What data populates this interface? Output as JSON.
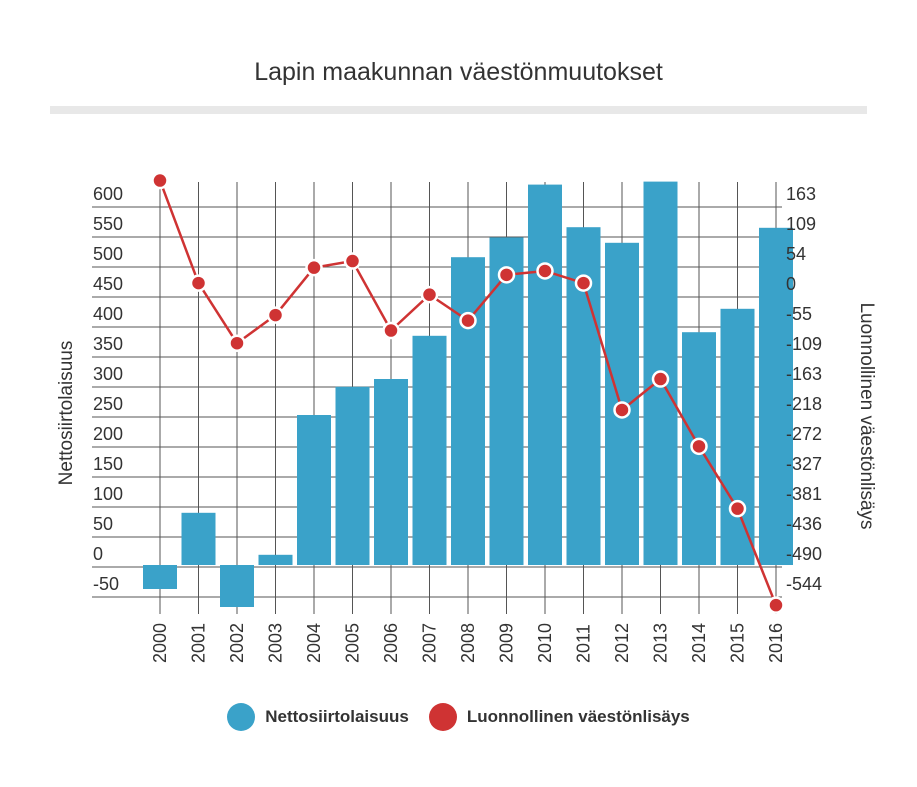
{
  "colors": {
    "bar": "#3aa2c9",
    "line": "#cf3333",
    "grid": "#555555",
    "text": "#333333"
  },
  "chart_data": {
    "type": "bar",
    "title": "Lapin maakunnan väestönmuutokset",
    "categories": [
      "2000",
      "2001",
      "2002",
      "2003",
      "2004",
      "2005",
      "2006",
      "2007",
      "2008",
      "2009",
      "2010",
      "2011",
      "2012",
      "2013",
      "2014",
      "2015",
      "2016"
    ],
    "series": [
      {
        "name": "Nettosiirtolaisuus",
        "type": "bar",
        "axis": "left",
        "values": [
          -40,
          87,
          -70,
          17,
          250,
          297,
          310,
          382,
          513,
          546,
          634,
          563,
          537,
          639,
          388,
          427,
          562
        ]
      },
      {
        "name": "Luonnollinen väestönlisäys",
        "type": "line",
        "axis": "right",
        "values": [
          184,
          -2,
          -111,
          -60,
          26,
          38,
          -88,
          -23,
          -70,
          13,
          20,
          -2,
          -232,
          -176,
          -298,
          -411,
          -586
        ]
      }
    ],
    "y_left": {
      "label": "Nettosiirtolaisuus",
      "ticks": [
        "600",
        "550",
        "500",
        "450",
        "400",
        "350",
        "300",
        "250",
        "200",
        "150",
        "100",
        "50",
        "0",
        "-50"
      ],
      "range": [
        -70,
        640
      ]
    },
    "y_right": {
      "label": "Luonnollinen väestönlisäys",
      "ticks": [
        "163",
        "109",
        "54",
        "0",
        "-55",
        "-109",
        "-163",
        "-218",
        "-272",
        "-327",
        "-381",
        "-436",
        "-490",
        "-544"
      ]
    },
    "grid": true,
    "legend": "bottom"
  }
}
